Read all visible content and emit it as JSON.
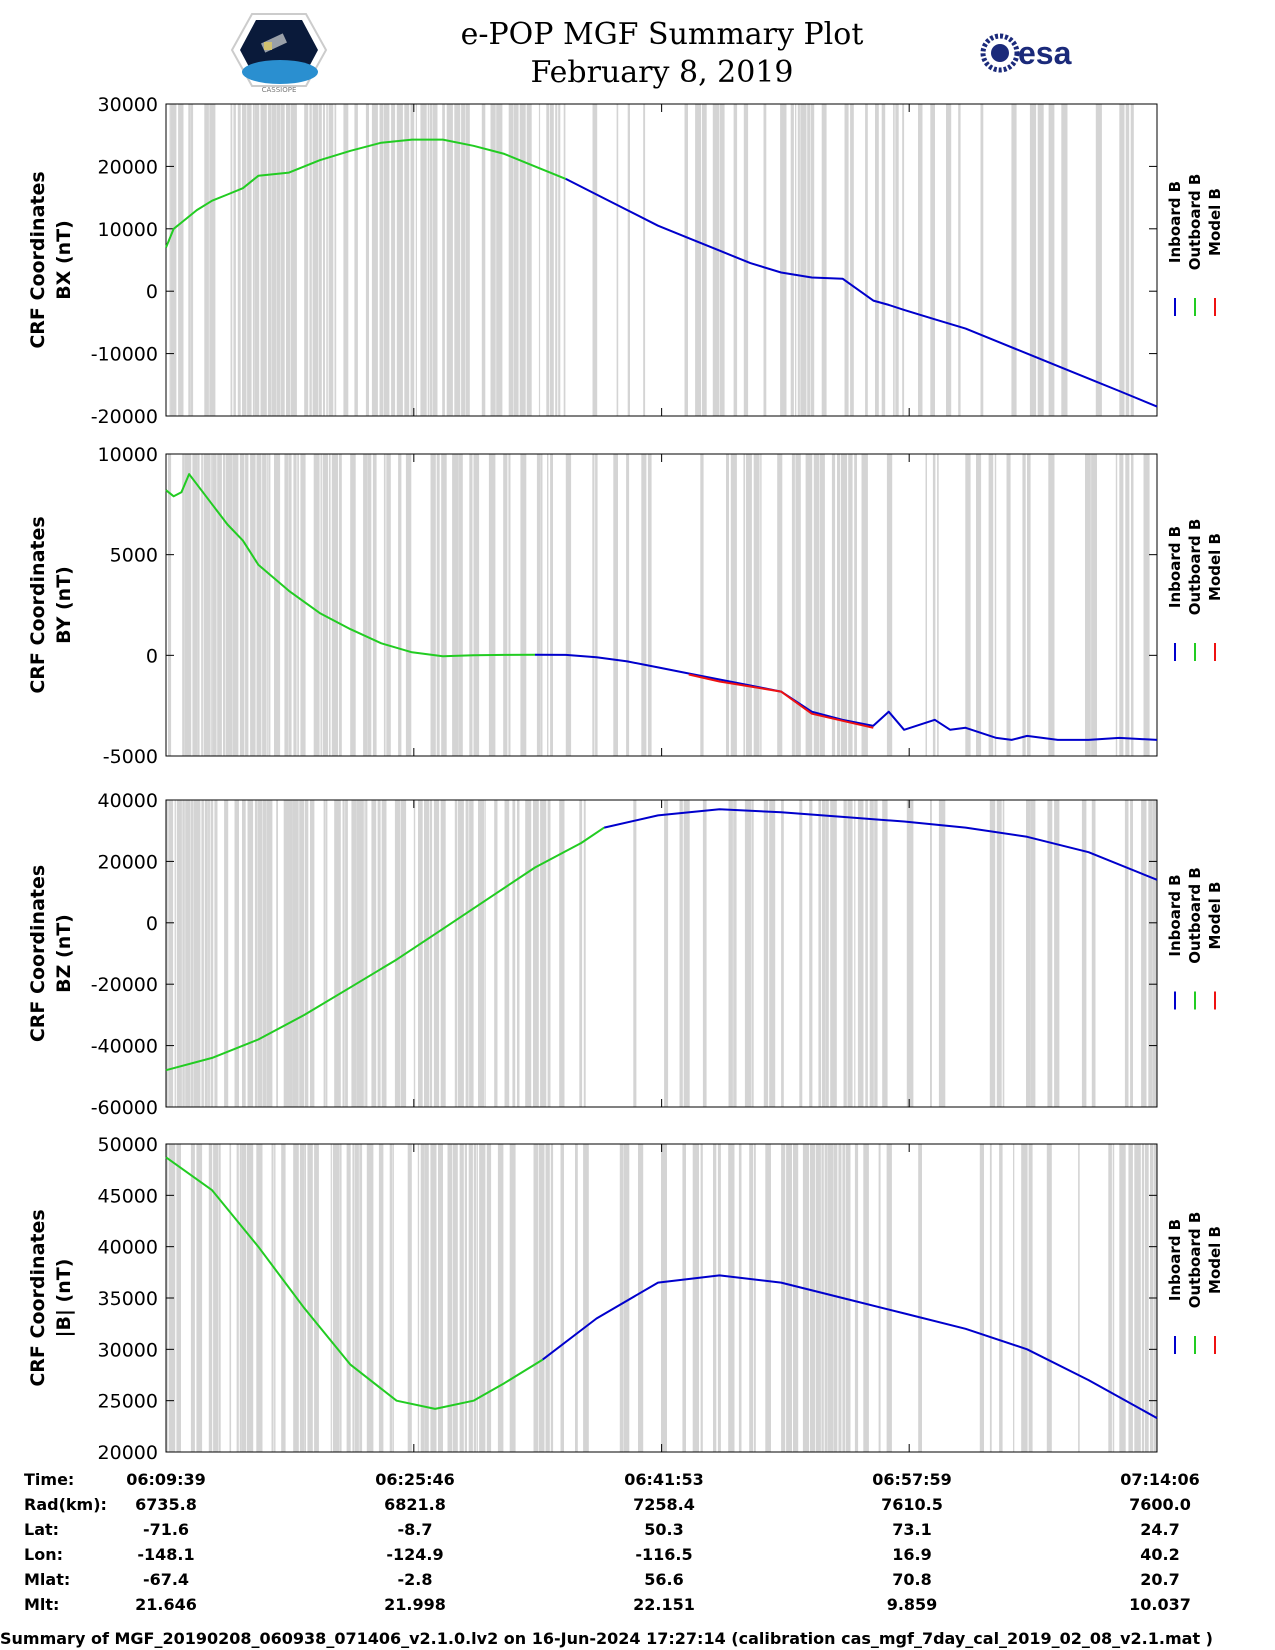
{
  "header": {
    "title": "e-POP MGF Summary Plot",
    "date": "February 8, 2019",
    "esa_logo_text": "esa",
    "mission_logo_text": "CASSIOPE"
  },
  "colors": {
    "inboard": "#0000cc",
    "outboard": "#22cc22",
    "model": "#ee1111",
    "gaps": "#d4d4d4"
  },
  "legend": [
    "Inboard B",
    "Outboard B",
    "Model B"
  ],
  "chart_data": [
    {
      "type": "line",
      "ylabel_line1": "CRF Coordinates",
      "ylabel_line2": "BX (nT)",
      "ylim": [
        -20000,
        30000
      ],
      "yticks": [
        "30000",
        "20000",
        "10000",
        "0",
        "-10000",
        "-20000"
      ],
      "yticks_values": [
        30000,
        20000,
        10000,
        0,
        -10000,
        -20000
      ],
      "x_minutes": [
        0,
        4,
        8,
        12,
        16,
        20,
        24,
        28,
        32,
        36,
        40,
        44,
        48,
        52,
        56,
        60,
        64.45
      ],
      "series": [
        {
          "name": "Outboard B",
          "x": [
            0,
            0.5,
            1,
            2,
            3,
            4,
            5,
            6,
            8,
            10,
            12,
            14,
            16,
            18,
            20,
            22,
            24,
            26
          ],
          "values": [
            7000,
            10000,
            11000,
            13000,
            14500,
            15500,
            16500,
            18500,
            19000,
            21000,
            22500,
            23800,
            24300,
            24300,
            23300,
            22000,
            20000,
            18000
          ]
        },
        {
          "name": "Inboard B",
          "x": [
            26,
            28,
            30,
            32,
            34,
            36,
            38,
            40,
            42,
            44,
            46,
            47,
            48,
            50,
            52,
            54,
            56,
            58,
            60,
            62,
            64.45
          ],
          "values": [
            18000,
            15500,
            13000,
            10500,
            8500,
            6500,
            4500,
            3000,
            2200,
            2000,
            -1500,
            -2200,
            -3000,
            -4500,
            -6000,
            -8000,
            -10000,
            -12000,
            -14000,
            -16000,
            -18500
          ]
        }
      ]
    },
    {
      "type": "line",
      "ylabel_line1": "CRF Coordinates",
      "ylabel_line2": "BY (nT)",
      "ylim": [
        -5000,
        10000
      ],
      "yticks": [
        "10000",
        "5000",
        "0",
        "-5000"
      ],
      "yticks_values": [
        10000,
        5000,
        0,
        -5000
      ],
      "series": [
        {
          "name": "Outboard B",
          "x": [
            0,
            0.5,
            1,
            1.5,
            2,
            3,
            4,
            5,
            6,
            8,
            10,
            12,
            14,
            16,
            18,
            20,
            22,
            24
          ],
          "values": [
            8200,
            7900,
            8100,
            9000,
            8500,
            7500,
            6500,
            5700,
            4500,
            3200,
            2100,
            1300,
            600,
            150,
            -50,
            0,
            20,
            30
          ]
        },
        {
          "name": "Inboard B",
          "x": [
            24,
            26,
            28,
            30,
            32,
            34,
            36,
            38,
            40,
            42,
            44,
            46,
            47,
            48,
            50,
            51,
            52,
            54,
            55,
            56,
            58,
            60,
            62,
            64.45
          ],
          "values": [
            30,
            20,
            -100,
            -300,
            -600,
            -900,
            -1200,
            -1500,
            -1800,
            -2800,
            -3200,
            -3500,
            -2800,
            -3700,
            -3200,
            -3700,
            -3600,
            -4100,
            -4200,
            -4000,
            -4200,
            -4200,
            -4100,
            -4200
          ]
        },
        {
          "name": "Model B",
          "x": [
            34,
            36,
            38,
            40,
            42,
            44,
            46
          ],
          "values": [
            -950,
            -1300,
            -1550,
            -1800,
            -2900,
            -3250,
            -3600
          ]
        }
      ]
    },
    {
      "type": "line",
      "ylabel_line1": "CRF Coordinates",
      "ylabel_line2": "BZ (nT)",
      "ylim": [
        -60000,
        40000
      ],
      "yticks": [
        "40000",
        "20000",
        "0",
        "-20000",
        "-40000",
        "-60000"
      ],
      "yticks_values": [
        40000,
        20000,
        0,
        -20000,
        -40000,
        -60000
      ],
      "series": [
        {
          "name": "Outboard B",
          "x": [
            0,
            3,
            6,
            9,
            12,
            15,
            18,
            21,
            24,
            27,
            28.5
          ],
          "values": [
            -48000,
            -44000,
            -38000,
            -30000,
            -21000,
            -12000,
            -2000,
            8000,
            18000,
            26000,
            31000
          ]
        },
        {
          "name": "Inboard B",
          "x": [
            28.5,
            32,
            36,
            40,
            44,
            48,
            52,
            56,
            60,
            64.45
          ],
          "values": [
            31000,
            35000,
            37000,
            36000,
            34500,
            33000,
            31000,
            28000,
            23000,
            14000
          ]
        }
      ]
    },
    {
      "type": "line",
      "ylabel_line1": "CRF Coordinates",
      "ylabel_line2": "|B| (nT)",
      "ylim": [
        20000,
        50000
      ],
      "yticks": [
        "50000",
        "45000",
        "40000",
        "35000",
        "30000",
        "25000",
        "20000"
      ],
      "yticks_values": [
        50000,
        45000,
        40000,
        35000,
        30000,
        25000,
        20000
      ],
      "series": [
        {
          "name": "Outboard B",
          "x": [
            0,
            3,
            6,
            9,
            12,
            15,
            17.5,
            20,
            22,
            24.5
          ],
          "values": [
            48700,
            45500,
            40000,
            34000,
            28500,
            25000,
            24200,
            25000,
            26700,
            29000
          ]
        },
        {
          "name": "Inboard B",
          "x": [
            24.5,
            28,
            32,
            36,
            40,
            44,
            48,
            52,
            56,
            60,
            64.45
          ],
          "values": [
            29000,
            33000,
            36500,
            37200,
            36500,
            35000,
            33500,
            32000,
            30000,
            27000,
            23300
          ]
        }
      ]
    }
  ],
  "info_rows": [
    {
      "label": "Time:",
      "values": [
        "06:09:39",
        "06:25:46",
        "06:41:53",
        "06:57:59",
        "07:14:06"
      ]
    },
    {
      "label": "Rad(km):",
      "values": [
        "6735.8",
        "6821.8",
        "7258.4",
        "7610.5",
        "7600.0"
      ]
    },
    {
      "label": "Lat:",
      "values": [
        "-71.6",
        "-8.7",
        "50.3",
        "73.1",
        "24.7"
      ]
    },
    {
      "label": "Lon:",
      "values": [
        "-148.1",
        "-124.9",
        "-116.5",
        "16.9",
        "40.2"
      ]
    },
    {
      "label": "Mlat:",
      "values": [
        "-67.4",
        "-2.8",
        "56.6",
        "70.8",
        "20.7"
      ]
    },
    {
      "label": "Mlt:",
      "values": [
        "21.646",
        "21.998",
        "22.151",
        "9.859",
        "10.037"
      ]
    }
  ],
  "footer": "Summary of MGF_20190208_060938_071406_v2.1.0.lv2 on 16-Jun-2024 17:27:14 (calibration cas_mgf_7day_cal_2019_02_08_v2.1.mat )"
}
